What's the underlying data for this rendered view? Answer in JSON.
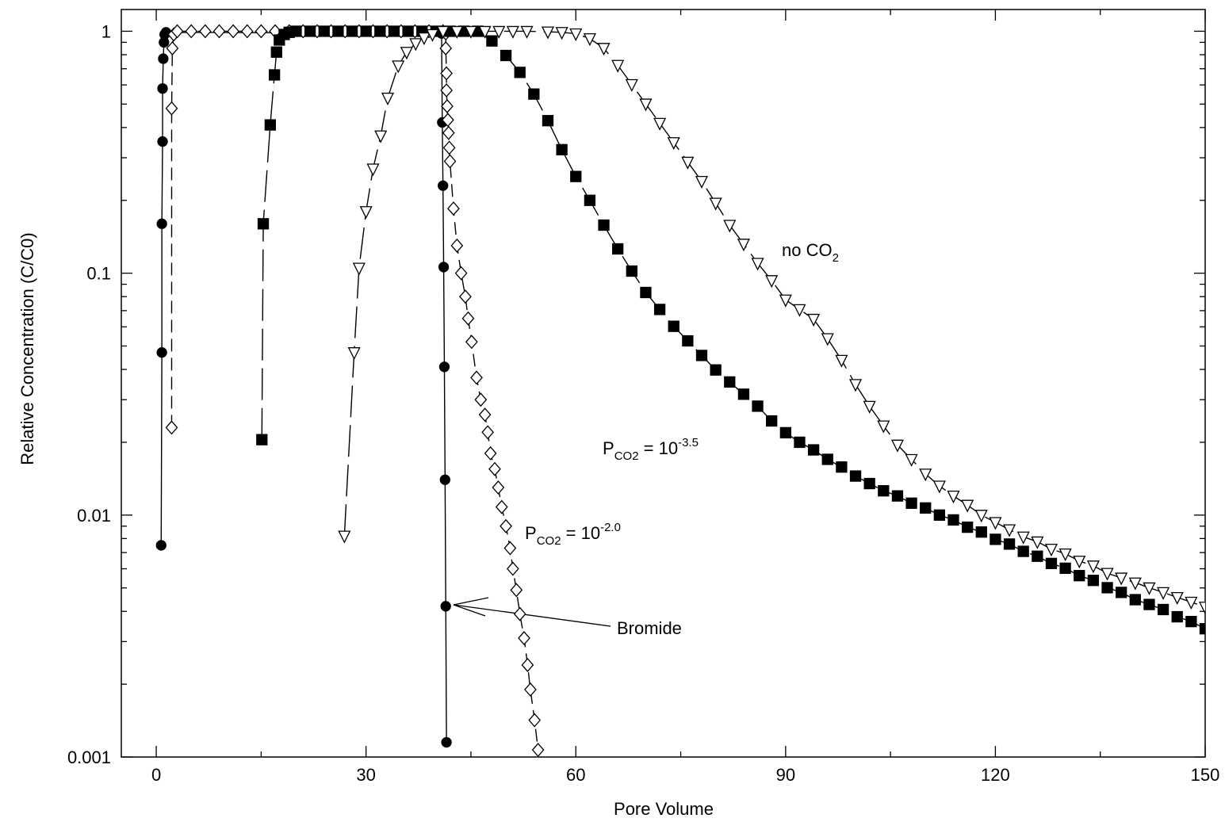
{
  "chart_data": {
    "type": "scatter",
    "x_label": "Pore Volume",
    "y_label": "Relative Concentration (C/C0)",
    "xlim": [
      -5,
      150
    ],
    "xticks": [
      0,
      30,
      60,
      90,
      120,
      150
    ],
    "xminor": [
      15,
      45,
      75,
      105,
      135
    ],
    "ylim": [
      0.001,
      1.23
    ],
    "yticks": [
      0.001,
      0.01,
      0.1,
      1
    ],
    "yminor": [
      0.002,
      0.003,
      0.004,
      0.005,
      0.006,
      0.007,
      0.008,
      0.009,
      0.02,
      0.03,
      0.04,
      0.05,
      0.06,
      0.07,
      0.08,
      0.09,
      0.2,
      0.3,
      0.4,
      0.5,
      0.6,
      0.7,
      0.8,
      0.9
    ],
    "y_scale": "log",
    "annotations": [
      {
        "main": "no CO",
        "sub": "2"
      },
      {
        "main": "P",
        "sub": "CO2",
        "rest": " = 10",
        "sup": "-3.5"
      },
      {
        "main": "P",
        "sub": "CO2",
        "rest": " = 10",
        "sup": "-2.0"
      },
      {
        "main": "Bromide"
      }
    ],
    "series": [
      {
        "marker": "circle",
        "filled": true,
        "line": "solid",
        "color": "#000000",
        "x": [
          0.7,
          0.8,
          0.8,
          0.9,
          0.9,
          1.0,
          1.1,
          1.2,
          1.4,
          40.8,
          40.9,
          41.0,
          41.1,
          41.2,
          41.3,
          41.4,
          41.5
        ],
        "values": [
          0.0075,
          0.047,
          0.16,
          0.35,
          0.58,
          0.77,
          0.9,
          0.97,
          0.99,
          0.98,
          0.42,
          0.23,
          0.106,
          0.041,
          0.014,
          0.0042,
          0.00115
        ]
      },
      {
        "marker": "diamond",
        "filled": false,
        "line": "dashed",
        "color": "#000000",
        "x": [
          2.2,
          2.2,
          2.3,
          2.5,
          3,
          5,
          7,
          9,
          11,
          13,
          15,
          17,
          19,
          21,
          23,
          25,
          27,
          29,
          31,
          33,
          35,
          37,
          39,
          41,
          41.4,
          41.4,
          41.5,
          41.5,
          41.6,
          41.7,
          41.8,
          41.9,
          42,
          42.5,
          43,
          43.6,
          44.2,
          44.6,
          45.1,
          45.8,
          46.4,
          47,
          47.4,
          47.8,
          48.4,
          48.9,
          49.4,
          50,
          50.6,
          51,
          51.5,
          52,
          52.6,
          53.1,
          53.5,
          54.1,
          54.6
        ],
        "values": [
          0.023,
          0.48,
          0.85,
          0.97,
          1,
          1,
          1,
          1,
          1,
          1,
          1,
          1,
          1,
          1,
          1,
          1,
          1,
          1,
          1,
          1,
          1,
          1,
          1,
          1,
          0.98,
          0.85,
          0.67,
          0.57,
          0.49,
          0.43,
          0.38,
          0.33,
          0.29,
          0.185,
          0.13,
          0.1,
          0.08,
          0.065,
          0.052,
          0.037,
          0.03,
          0.026,
          0.022,
          0.018,
          0.0155,
          0.013,
          0.0108,
          0.009,
          0.0073,
          0.006,
          0.0049,
          0.0039,
          0.0031,
          0.0024,
          0.0019,
          0.00142,
          0.00107
        ]
      },
      {
        "marker": "square",
        "filled": true,
        "line": "longdash",
        "color": "#000000",
        "x": [
          15.1,
          15.3,
          16.3,
          16.9,
          17.2,
          17.6,
          18.3,
          19,
          20,
          22,
          24,
          26,
          28,
          30,
          32,
          34,
          36,
          38,
          40,
          42,
          44,
          46,
          48,
          50,
          52,
          54,
          56,
          58,
          60,
          62,
          64,
          66,
          68,
          70,
          72,
          74,
          76,
          78,
          80,
          82,
          84,
          86,
          88,
          90,
          92,
          94,
          96,
          98,
          100,
          102,
          104,
          106,
          108,
          110,
          112,
          114,
          116,
          118,
          120,
          122,
          124,
          126,
          128,
          130,
          132,
          134,
          136,
          138,
          140,
          142,
          144,
          146,
          148,
          150
        ],
        "values": [
          0.0205,
          0.16,
          0.41,
          0.66,
          0.82,
          0.92,
          0.97,
          0.99,
          1,
          1,
          1,
          1,
          1,
          1,
          1,
          1,
          1,
          1,
          1,
          1,
          1,
          1,
          0.912,
          0.794,
          0.676,
          0.55,
          0.427,
          0.324,
          0.251,
          0.2,
          0.158,
          0.126,
          0.102,
          0.0832,
          0.0708,
          0.0603,
          0.0525,
          0.0457,
          0.0398,
          0.0355,
          0.0316,
          0.0282,
          0.0245,
          0.0219,
          0.02,
          0.0186,
          0.017,
          0.0158,
          0.0145,
          0.0135,
          0.0126,
          0.012,
          0.0112,
          0.0107,
          0.01,
          0.00955,
          0.00891,
          0.00851,
          0.00794,
          0.00759,
          0.00708,
          0.00676,
          0.00631,
          0.00603,
          0.00562,
          0.00537,
          0.00501,
          0.00479,
          0.00447,
          0.00427,
          0.00407,
          0.0038,
          0.00363,
          0.00339
        ]
      },
      {
        "marker": "triangle-down",
        "filled": false,
        "line": "longdash",
        "color": "#000000",
        "x": [
          26.9,
          28.3,
          29,
          30,
          31,
          32.1,
          33.1,
          34.6,
          35.8,
          37.1,
          38.3,
          39.5,
          41,
          43,
          45,
          47,
          49,
          51,
          53,
          56,
          58,
          60,
          62,
          64,
          66,
          68,
          70,
          72,
          74,
          76,
          78,
          80,
          82,
          84,
          86,
          88,
          90,
          92,
          94,
          96,
          98,
          100,
          102,
          104,
          106,
          108,
          110,
          112,
          114,
          116,
          118,
          120,
          122,
          124,
          126,
          128,
          130,
          132,
          134,
          136,
          138,
          140,
          142,
          144,
          146,
          148,
          150
        ],
        "values": [
          0.0082,
          0.047,
          0.105,
          0.18,
          0.27,
          0.37,
          0.53,
          0.72,
          0.82,
          0.89,
          0.94,
          0.97,
          1,
          1,
          1,
          1,
          1,
          1,
          1,
          0.995,
          0.99,
          0.977,
          0.933,
          0.851,
          0.724,
          0.603,
          0.501,
          0.417,
          0.347,
          0.288,
          0.24,
          0.195,
          0.158,
          0.132,
          0.11,
          0.0933,
          0.0776,
          0.0708,
          0.0646,
          0.0537,
          0.0437,
          0.0347,
          0.0282,
          0.0234,
          0.0195,
          0.017,
          0.0148,
          0.0132,
          0.012,
          0.011,
          0.01,
          0.00933,
          0.00871,
          0.00813,
          0.00776,
          0.00724,
          0.00692,
          0.00646,
          0.00617,
          0.00575,
          0.0055,
          0.00525,
          0.00501,
          0.00479,
          0.00457,
          0.00437,
          0.00417
        ]
      }
    ]
  }
}
